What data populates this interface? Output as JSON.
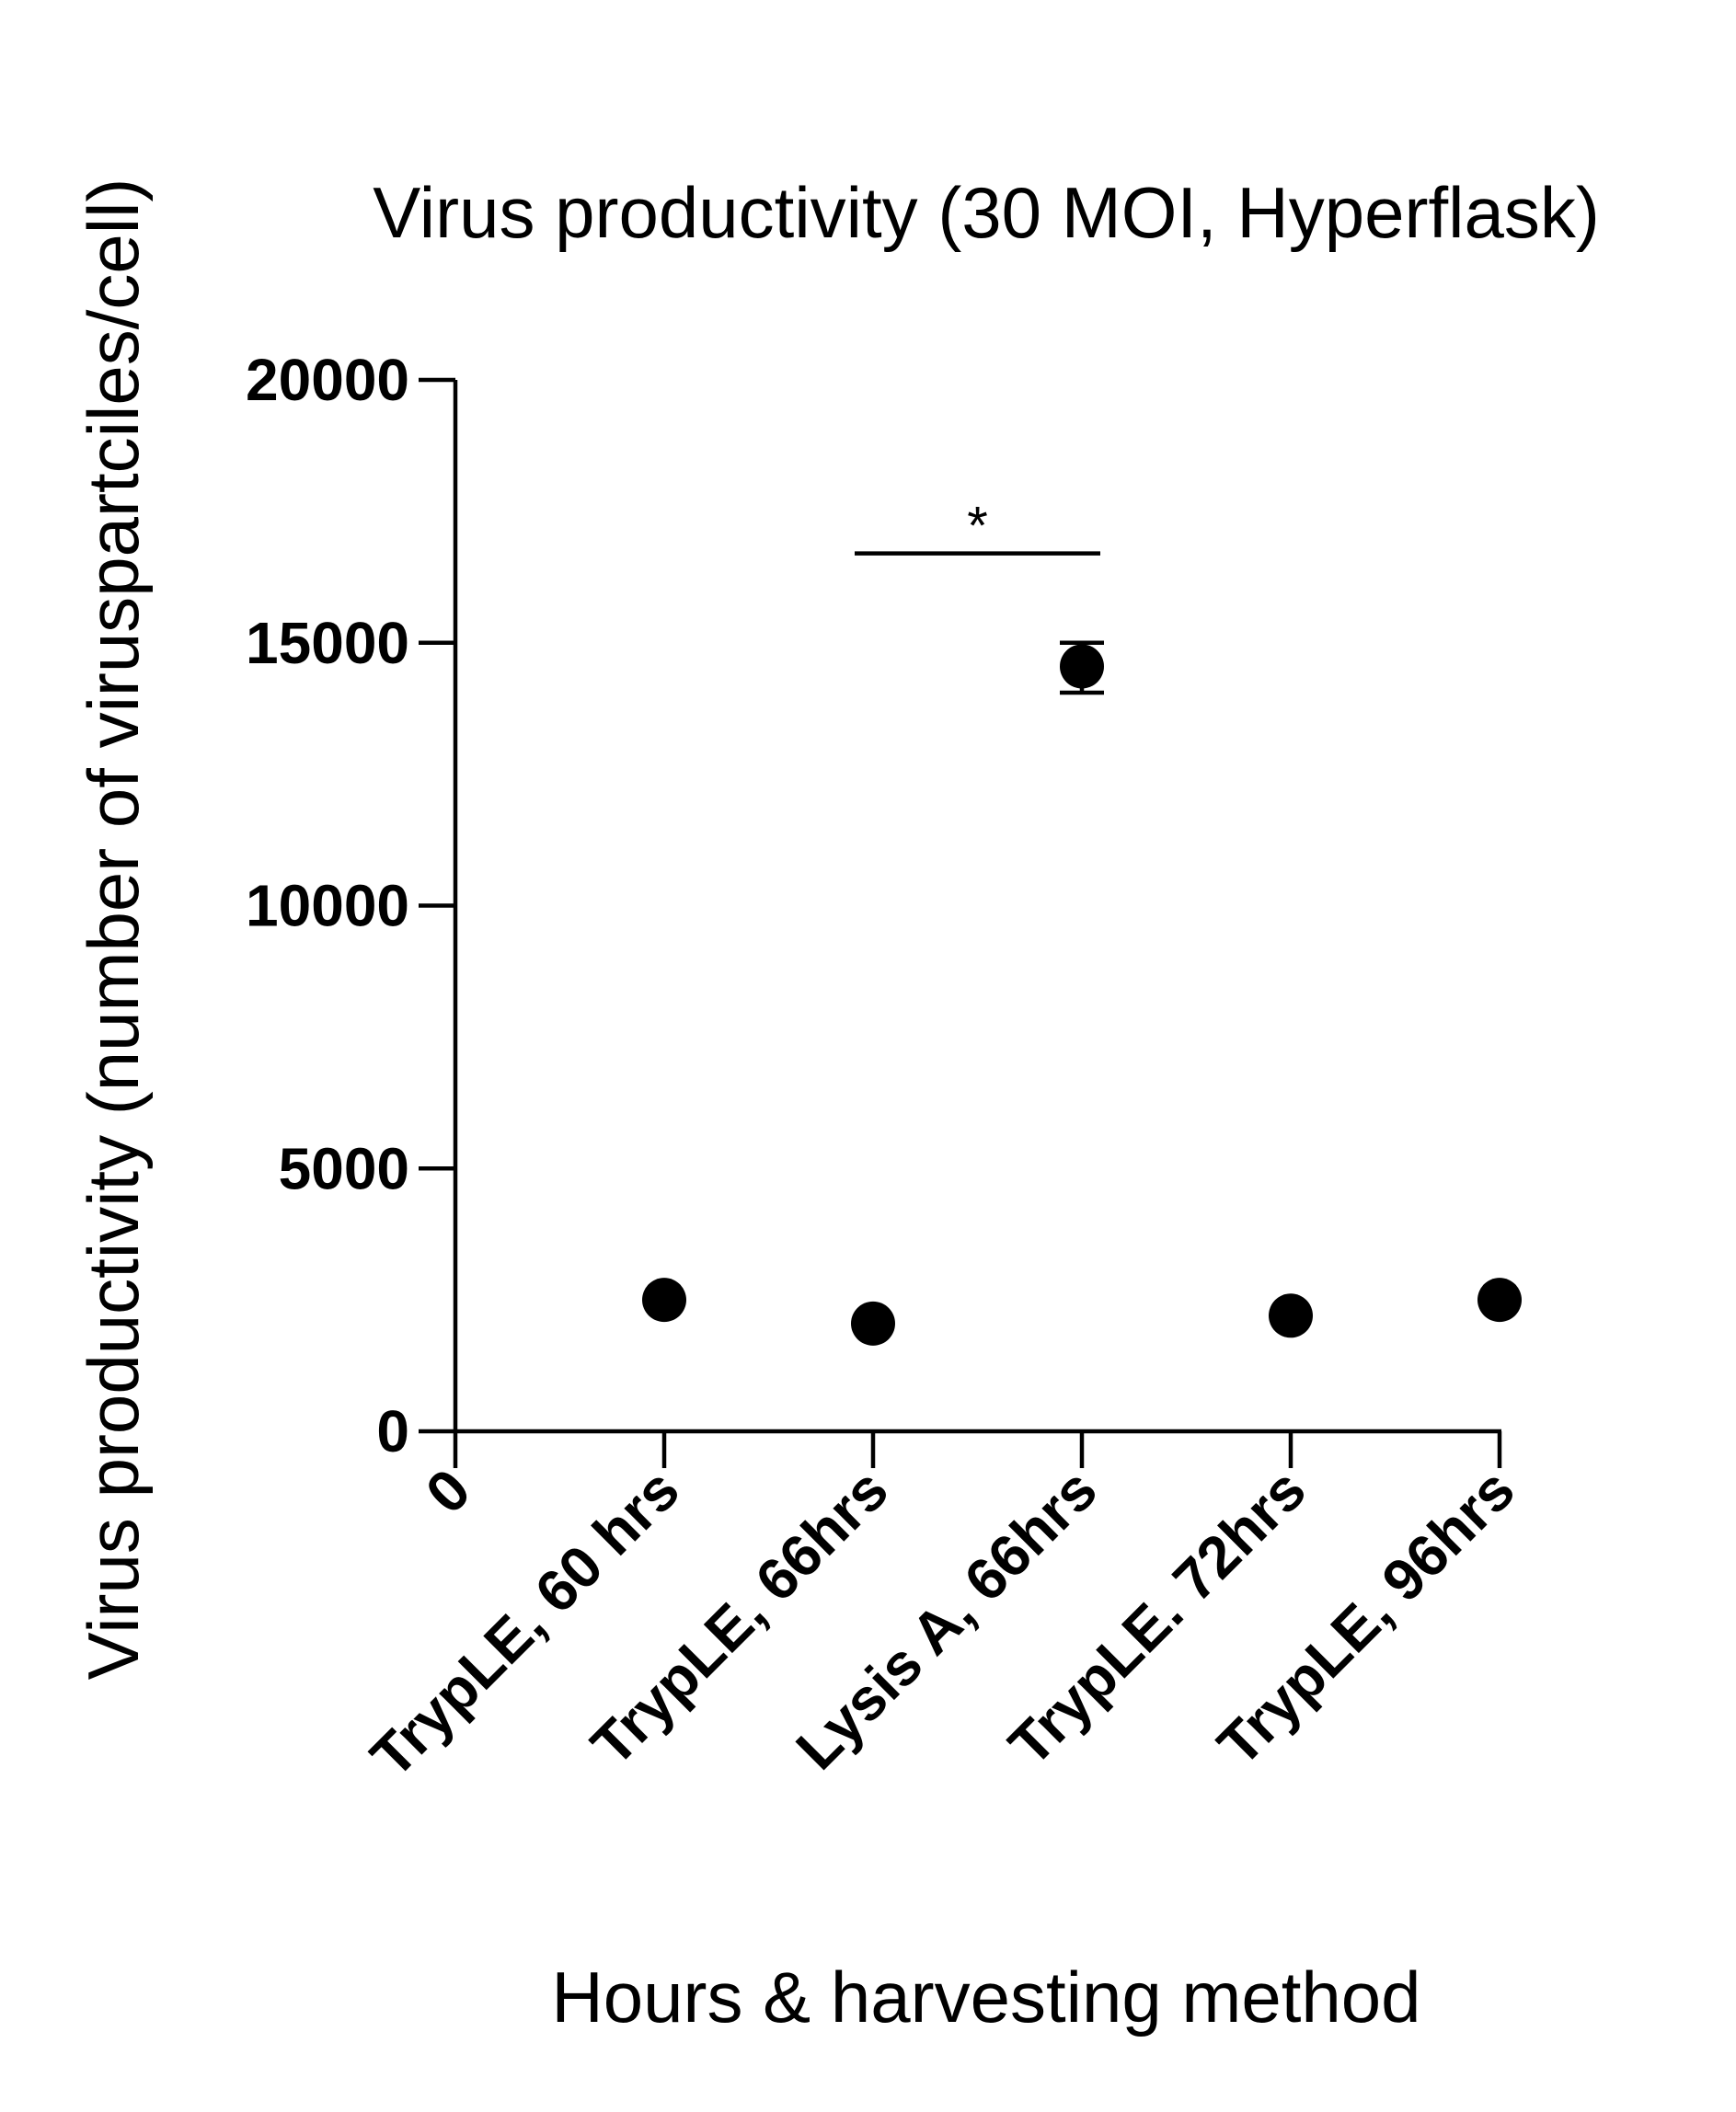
{
  "chart_data": {
    "type": "scatter",
    "title": "Virus productivity (30 MOI, Hyperflask)",
    "xlabel": "Hours & harvesting method",
    "ylabel": "Virus productivity (number of viruspartciles/cell)",
    "categories": [
      "0",
      "TrypLE, 60 hrs",
      "TrypLE, 66hrs",
      "Lysis A, 66hrs",
      "TrypLE. 72hrs",
      "TrypLE, 96hrs"
    ],
    "ylim": [
      0,
      20000
    ],
    "yticks": [
      0,
      5000,
      10000,
      15000,
      20000
    ],
    "grid": false,
    "series": [
      {
        "points": [
          {
            "category": "TrypLE, 60 hrs",
            "y": 2500
          },
          {
            "category": "TrypLE, 66hrs",
            "y": 2050
          },
          {
            "category": "Lysis A, 66hrs",
            "y": 14550,
            "err_low": 14050,
            "err_high": 15000
          },
          {
            "category": "TrypLE. 72hrs",
            "y": 2200
          },
          {
            "category": "TrypLE, 96hrs",
            "y": 2500
          }
        ]
      }
    ],
    "significance": [
      {
        "from": "TrypLE, 66hrs",
        "to": "Lysis A, 66hrs",
        "y": 16700,
        "label": "*"
      }
    ],
    "colors": {
      "marker": "#000000",
      "axis": "#000000"
    }
  }
}
